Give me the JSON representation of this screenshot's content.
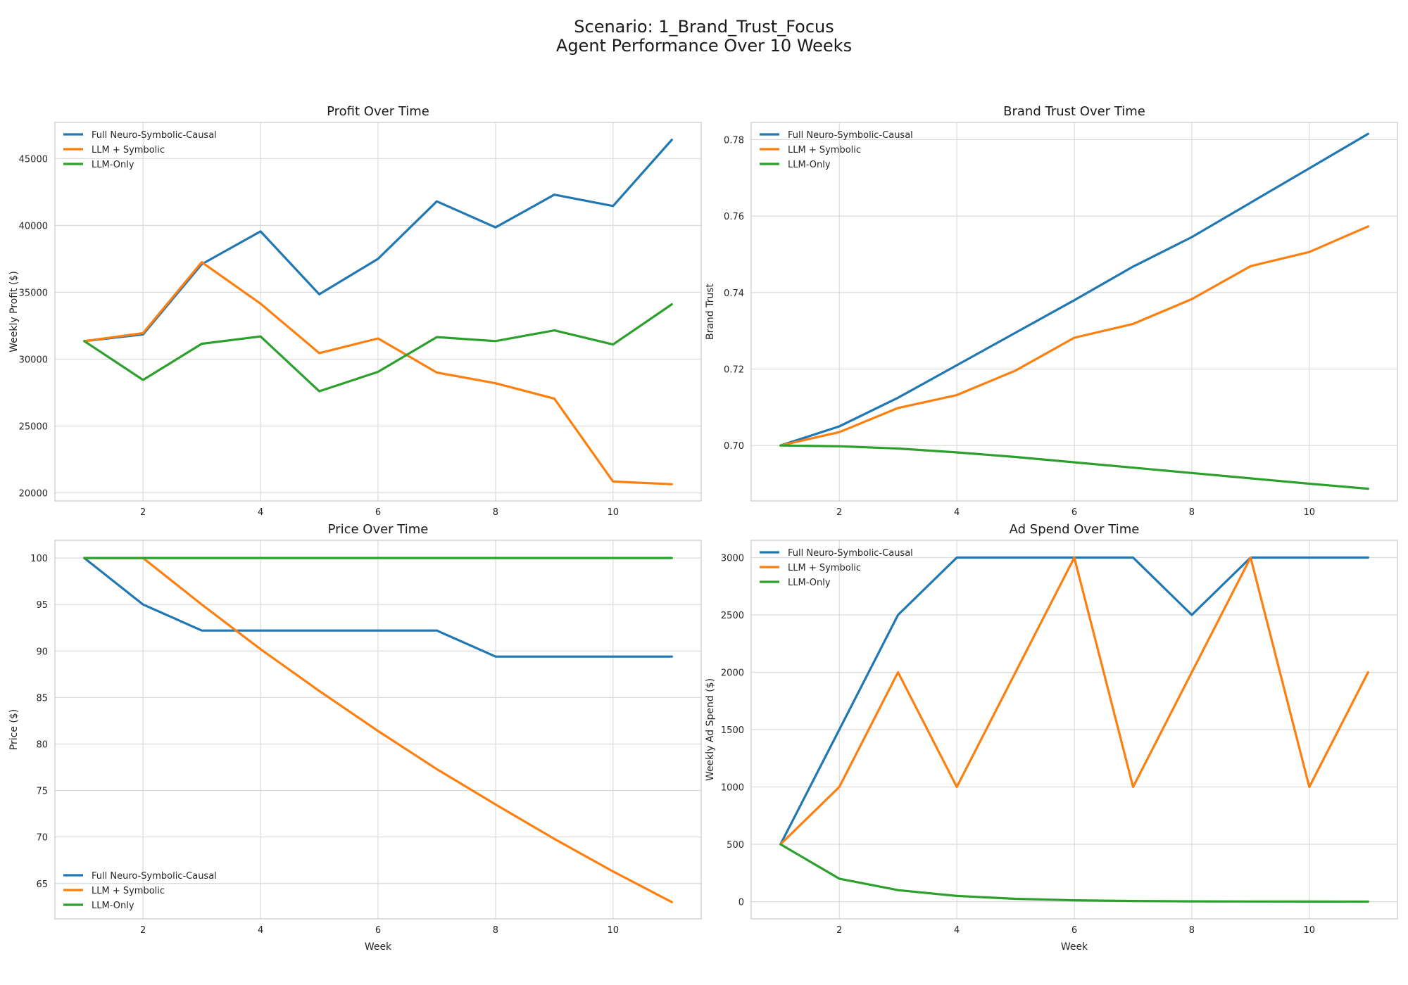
{
  "figure": {
    "title_line1": "Scenario: 1_Brand_Trust_Focus",
    "title_line2": "Agent Performance Over 10 Weeks"
  },
  "chart_data": [
    {
      "id": "profit",
      "type": "line",
      "title": "Profit Over Time",
      "xlabel": "",
      "ylabel": "Weekly Profit ($)",
      "x": [
        1,
        2,
        3,
        4,
        5,
        6,
        7,
        8,
        9,
        10,
        11
      ],
      "xlim": [
        0.5,
        11.5
      ],
      "ylim": [
        19400,
        47700
      ],
      "xticks": [
        2,
        4,
        6,
        8,
        10
      ],
      "yticks": [
        20000,
        25000,
        30000,
        35000,
        40000,
        45000
      ],
      "grid": true,
      "legend": "top-left",
      "series": [
        {
          "name": "Full Neuro-Symbolic-Causal",
          "color": "#1f77b4",
          "values": [
            31350,
            31850,
            37100,
            39550,
            34850,
            37500,
            41800,
            39850,
            42300,
            41450,
            46400
          ]
        },
        {
          "name": "LLM + Symbolic",
          "color": "#ff7f0e",
          "values": [
            31350,
            31950,
            37250,
            34150,
            30450,
            31550,
            29000,
            28200,
            27050,
            20850,
            20650
          ]
        },
        {
          "name": "LLM-Only",
          "color": "#2ca02c",
          "values": [
            31350,
            28450,
            31150,
            31700,
            27600,
            29050,
            31650,
            31350,
            32150,
            31100,
            34100
          ]
        }
      ]
    },
    {
      "id": "trust",
      "type": "line",
      "title": "Brand Trust Over Time",
      "xlabel": "",
      "ylabel": "Brand Trust",
      "x": [
        1,
        2,
        3,
        4,
        5,
        6,
        7,
        8,
        9,
        10,
        11
      ],
      "xlim": [
        0.5,
        11.5
      ],
      "ylim": [
        0.6855,
        0.7845
      ],
      "xticks": [
        2,
        4,
        6,
        8,
        10
      ],
      "yticks": [
        0.7,
        0.72,
        0.74,
        0.76,
        0.78
      ],
      "ytick_decimals": 2,
      "grid": true,
      "legend": "top-left",
      "series": [
        {
          "name": "Full Neuro-Symbolic-Causal",
          "color": "#1f77b4",
          "values": [
            0.7,
            0.705,
            0.7125,
            0.721,
            0.7295,
            0.738,
            0.7468,
            0.7545,
            0.7635,
            0.7725,
            0.7815
          ]
        },
        {
          "name": "LLM + Symbolic",
          "color": "#ff7f0e",
          "values": [
            0.7,
            0.7035,
            0.7098,
            0.7132,
            0.7196,
            0.7282,
            0.7318,
            0.7383,
            0.7469,
            0.7506,
            0.7573
          ]
        },
        {
          "name": "LLM-Only",
          "color": "#2ca02c",
          "values": [
            0.7,
            0.6998,
            0.6992,
            0.6982,
            0.697,
            0.6956,
            0.6942,
            0.6928,
            0.6914,
            0.69,
            0.6887
          ]
        }
      ]
    },
    {
      "id": "price",
      "type": "line",
      "title": "Price Over Time",
      "xlabel": "Week",
      "ylabel": "Price ($)",
      "x": [
        1,
        2,
        3,
        4,
        5,
        6,
        7,
        8,
        9,
        10,
        11
      ],
      "xlim": [
        0.5,
        11.5
      ],
      "ylim": [
        61.2,
        101.9
      ],
      "xticks": [
        2,
        4,
        6,
        8,
        10
      ],
      "yticks": [
        65,
        70,
        75,
        80,
        85,
        90,
        95,
        100
      ],
      "grid": true,
      "legend": "bottom-left",
      "series": [
        {
          "name": "Full Neuro-Symbolic-Causal",
          "color": "#1f77b4",
          "values": [
            100,
            95,
            92.2,
            92.2,
            92.2,
            92.2,
            92.2,
            89.4,
            89.4,
            89.4,
            89.4
          ]
        },
        {
          "name": "LLM + Symbolic",
          "color": "#ff7f0e",
          "values": [
            100,
            100,
            95,
            90.2,
            85.7,
            81.4,
            77.3,
            73.5,
            69.8,
            66.3,
            63.0
          ]
        },
        {
          "name": "LLM-Only",
          "color": "#2ca02c",
          "values": [
            100,
            100,
            100,
            100,
            100,
            100,
            100,
            100,
            100,
            100,
            100
          ]
        }
      ]
    },
    {
      "id": "adspend",
      "type": "line",
      "title": "Ad Spend Over Time",
      "xlabel": "Week",
      "ylabel": "Weekly Ad Spend ($)",
      "x": [
        1,
        2,
        3,
        4,
        5,
        6,
        7,
        8,
        9,
        10,
        11
      ],
      "xlim": [
        0.5,
        11.5
      ],
      "ylim": [
        -150,
        3150
      ],
      "xticks": [
        2,
        4,
        6,
        8,
        10
      ],
      "yticks": [
        0,
        500,
        1000,
        1500,
        2000,
        2500,
        3000
      ],
      "grid": true,
      "legend": "top-left",
      "series": [
        {
          "name": "Full Neuro-Symbolic-Causal",
          "color": "#1f77b4",
          "values": [
            500,
            1500,
            2500,
            3000,
            3000,
            3000,
            3000,
            2500,
            3000,
            3000,
            3000
          ]
        },
        {
          "name": "LLM + Symbolic",
          "color": "#ff7f0e",
          "values": [
            500,
            1000,
            2000,
            1000,
            2000,
            3000,
            1000,
            2000,
            3000,
            1000,
            2000
          ]
        },
        {
          "name": "LLM-Only",
          "color": "#2ca02c",
          "values": [
            500,
            200,
            100,
            50,
            25,
            12,
            6,
            3,
            1.5,
            0.8,
            0.4
          ]
        }
      ]
    }
  ]
}
